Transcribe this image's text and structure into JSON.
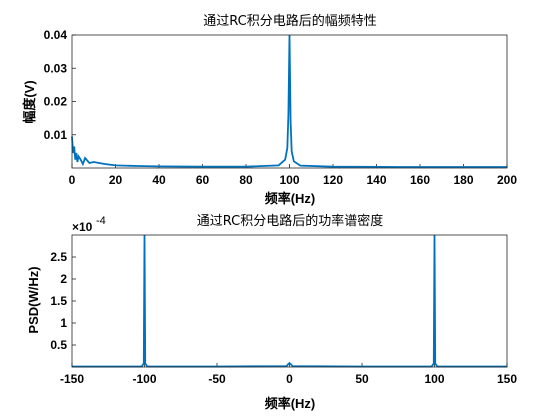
{
  "chart_data": [
    {
      "type": "line",
      "title": "通过RC积分电路后的幅频特性",
      "xlabel": "频率(Hz)",
      "ylabel": "幅度(V)",
      "xlim": [
        0,
        200
      ],
      "ylim": [
        0,
        0.04
      ],
      "x_ticks": [
        "0",
        "20",
        "40",
        "60",
        "80",
        "100",
        "120",
        "140",
        "160",
        "180",
        "200"
      ],
      "y_ticks": [
        "0.01",
        "0.02",
        "0.03",
        "0.04"
      ],
      "color": "#0072BD",
      "series": [
        {
          "x": [
            0,
            0.5,
            1,
            1.5,
            2,
            2.5,
            3,
            4,
            5,
            6,
            8,
            10,
            15,
            20,
            30,
            40,
            60,
            80,
            95,
            98,
            99,
            99.5,
            100,
            100.5,
            101,
            102,
            105,
            120,
            150,
            180,
            200
          ],
          "y": [
            0.0095,
            0.0045,
            0.0065,
            0.0025,
            0.0045,
            0.0018,
            0.0035,
            0.0025,
            0.0012,
            0.003,
            0.0015,
            0.0018,
            0.0012,
            0.0008,
            0.0006,
            0.0005,
            0.0004,
            0.0004,
            0.0008,
            0.0025,
            0.006,
            0.016,
            0.04,
            0.014,
            0.005,
            0.002,
            0.0007,
            0.0004,
            0.0003,
            0.0003,
            0.0003
          ]
        }
      ]
    },
    {
      "type": "line",
      "title": "通过RC积分电路后的功率谱密度",
      "xlabel": "频率(Hz)",
      "ylabel": "PSD(W/Hz)",
      "xlim": [
        -150,
        150
      ],
      "ylim": [
        0,
        0.0003
      ],
      "y_exponent": "-4",
      "x_ticks": [
        "-150",
        "-100",
        "-50",
        "0",
        "50",
        "100",
        "150"
      ],
      "y_ticks": [
        "0.5",
        "1",
        "1.5",
        "2",
        "2.5"
      ],
      "color": "#0072BD",
      "series": [
        {
          "x": [
            -150,
            -102,
            -100.5,
            -100,
            -99.5,
            -98,
            -50,
            -2,
            -1,
            0,
            1,
            2,
            50,
            98,
            99.5,
            100,
            100.5,
            102,
            150
          ],
          "y": [
            1e-06,
            1e-06,
            8e-06,
            0.00035,
            8e-06,
            1e-06,
            1e-06,
            2e-06,
            6e-06,
            9e-06,
            6e-06,
            2e-06,
            1e-06,
            1e-06,
            8e-06,
            0.00035,
            8e-06,
            1e-06,
            1e-06
          ]
        }
      ]
    }
  ]
}
